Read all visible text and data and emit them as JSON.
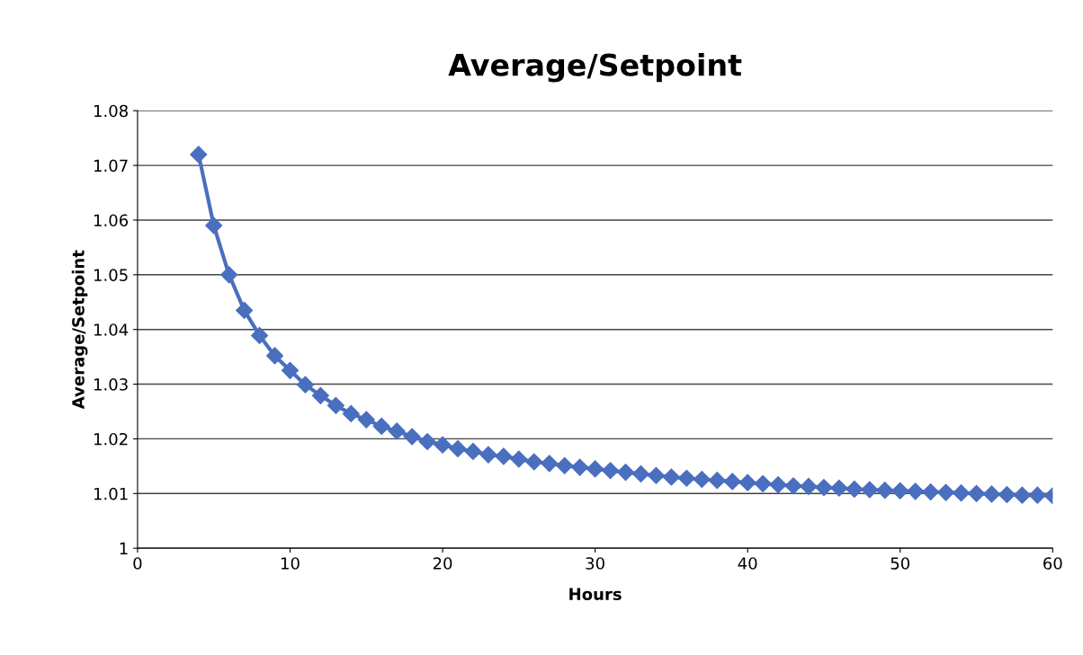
{
  "chart_data": {
    "type": "line",
    "title": "Average/Setpoint",
    "xlabel": "Hours",
    "ylabel": "Average/Setpoint",
    "x": [
      4,
      5,
      6,
      7,
      8,
      9,
      10,
      11,
      12,
      13,
      14,
      15,
      16,
      17,
      18,
      19,
      20,
      21,
      22,
      23,
      24,
      25,
      26,
      27,
      28,
      29,
      30,
      31,
      32,
      33,
      34,
      35,
      36,
      37,
      38,
      39,
      40,
      41,
      42,
      43,
      44,
      45,
      46,
      47,
      48,
      49,
      50,
      51,
      52,
      53,
      54,
      55,
      56,
      57,
      58,
      59,
      60
    ],
    "series": [
      {
        "color": "#4a6fbf",
        "values": [
          1.072,
          1.059,
          1.05,
          1.0435,
          1.0389,
          1.0352,
          1.0325,
          1.0299,
          1.0279,
          1.0261,
          1.0246,
          1.0235,
          1.0223,
          1.0214,
          1.0204,
          1.0195,
          1.0189,
          1.0182,
          1.0177,
          1.0171,
          1.0168,
          1.0163,
          1.0158,
          1.0155,
          1.0151,
          1.0148,
          1.0145,
          1.0142,
          1.0139,
          1.0136,
          1.0133,
          1.013,
          1.0128,
          1.0126,
          1.0124,
          1.0122,
          1.012,
          1.0118,
          1.0116,
          1.0114,
          1.0113,
          1.0111,
          1.011,
          1.0108,
          1.0107,
          1.0106,
          1.0105,
          1.0104,
          1.0103,
          1.0102,
          1.0101,
          1.01,
          1.0099,
          1.0098,
          1.0097,
          1.0097,
          1.0096
        ]
      }
    ],
    "xlim": [
      0,
      60
    ],
    "xticks": [
      0,
      10,
      20,
      30,
      40,
      50,
      60
    ],
    "ylim": [
      1,
      1.08
    ],
    "yticks": [
      {
        "value": 1,
        "label": "1"
      },
      1.01,
      1.02,
      1.03,
      1.04,
      1.05,
      1.06,
      1.07,
      1.08
    ],
    "grid": "y",
    "marker": "diamond",
    "line_style": "solid"
  }
}
